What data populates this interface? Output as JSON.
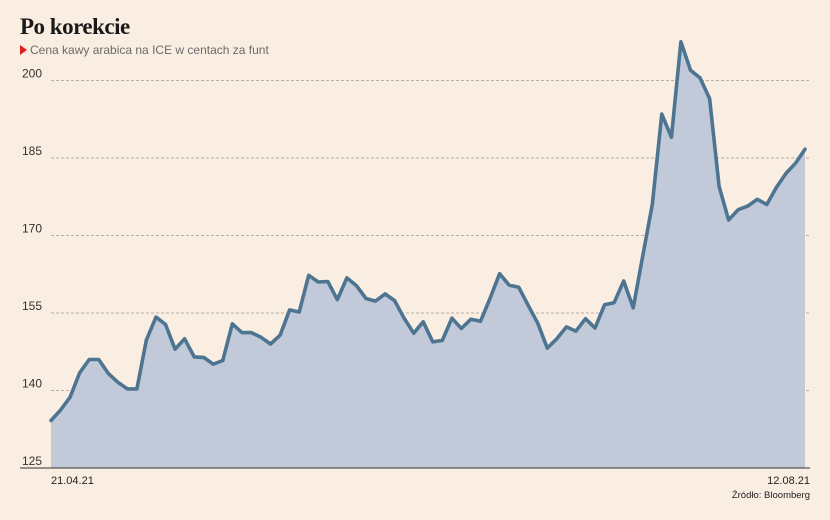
{
  "chart_data": {
    "type": "area",
    "title": "Po korekcie",
    "subtitle": "Cena kawy arabica na ICE w centach za funt",
    "source": "Źródło: Bloomberg",
    "ylim": [
      125,
      205
    ],
    "yticks": [
      125,
      140,
      155,
      170,
      185,
      200
    ],
    "xtick_labels": [
      "21.04.21",
      "12.08.21"
    ],
    "grid": true,
    "colors": {
      "line": "#4d7592",
      "fill": "#c2c9d8",
      "grid": "#a09a92",
      "background": "#faeee2",
      "marker": "#e0201b"
    },
    "values": [
      134.2,
      136.2,
      138.7,
      143.4,
      146.0,
      146.0,
      143.3,
      141.6,
      140.3,
      140.3,
      149.8,
      154.2,
      152.8,
      148.0,
      150.0,
      146.5,
      146.4,
      145.1,
      145.8,
      152.9,
      151.2,
      151.2,
      150.3,
      149.0,
      150.7,
      155.6,
      155.2,
      162.3,
      161.0,
      161.1,
      157.6,
      161.8,
      160.3,
      157.8,
      157.3,
      158.7,
      157.4,
      154.0,
      151.1,
      153.3,
      149.4,
      149.7,
      154.0,
      152.0,
      153.8,
      153.4,
      157.8,
      162.6,
      160.4,
      160.0,
      156.5,
      153.0,
      148.2,
      150.0,
      152.3,
      151.5,
      153.9,
      152.1,
      156.6,
      157.0,
      161.2,
      156.0,
      166.0,
      176.0,
      193.5,
      189.0,
      207.5,
      202.0,
      200.5,
      196.5,
      179.5,
      173.0,
      175.0,
      175.7,
      177.0,
      176.0,
      179.3,
      182.0,
      184.0,
      186.7
    ]
  }
}
